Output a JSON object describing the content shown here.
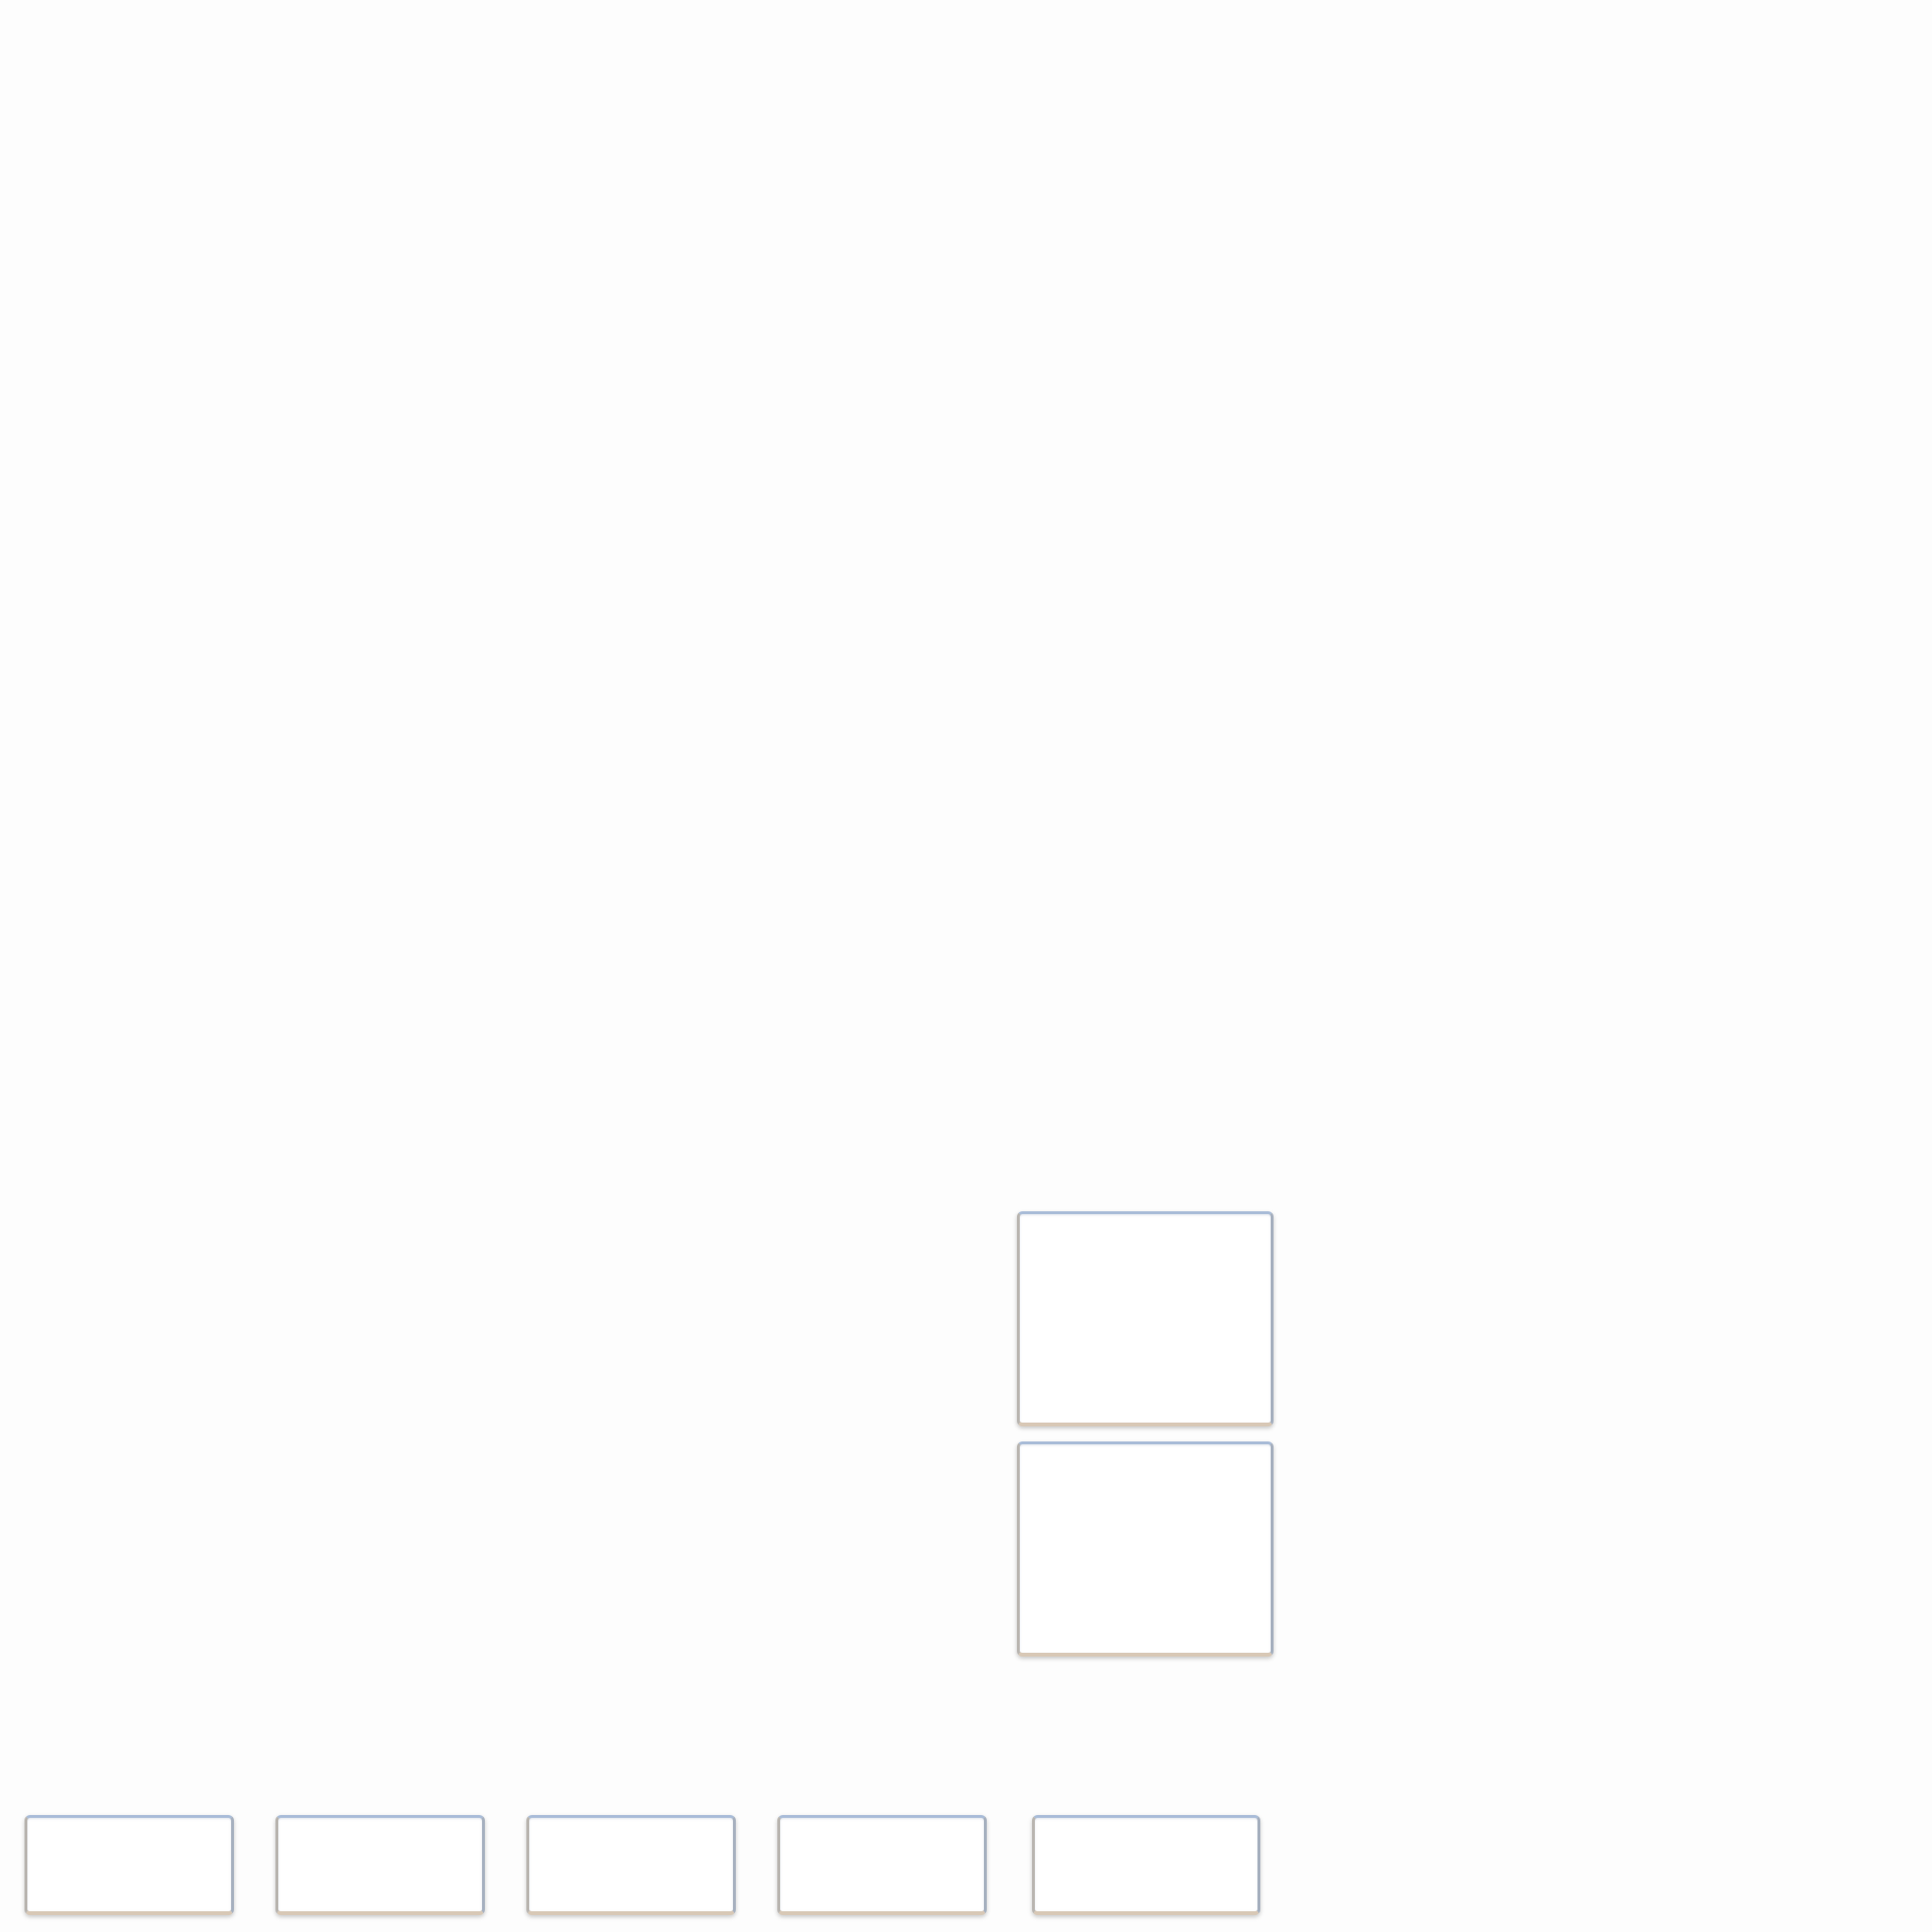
{
  "workspace": {
    "stacked_slots": [
      {
        "id": "upper",
        "label": ""
      },
      {
        "id": "lower",
        "label": ""
      }
    ],
    "row_slots": [
      {
        "id": "1",
        "label": ""
      },
      {
        "id": "2",
        "label": ""
      },
      {
        "id": "3",
        "label": ""
      },
      {
        "id": "4",
        "label": ""
      },
      {
        "id": "5",
        "label": ""
      }
    ]
  }
}
